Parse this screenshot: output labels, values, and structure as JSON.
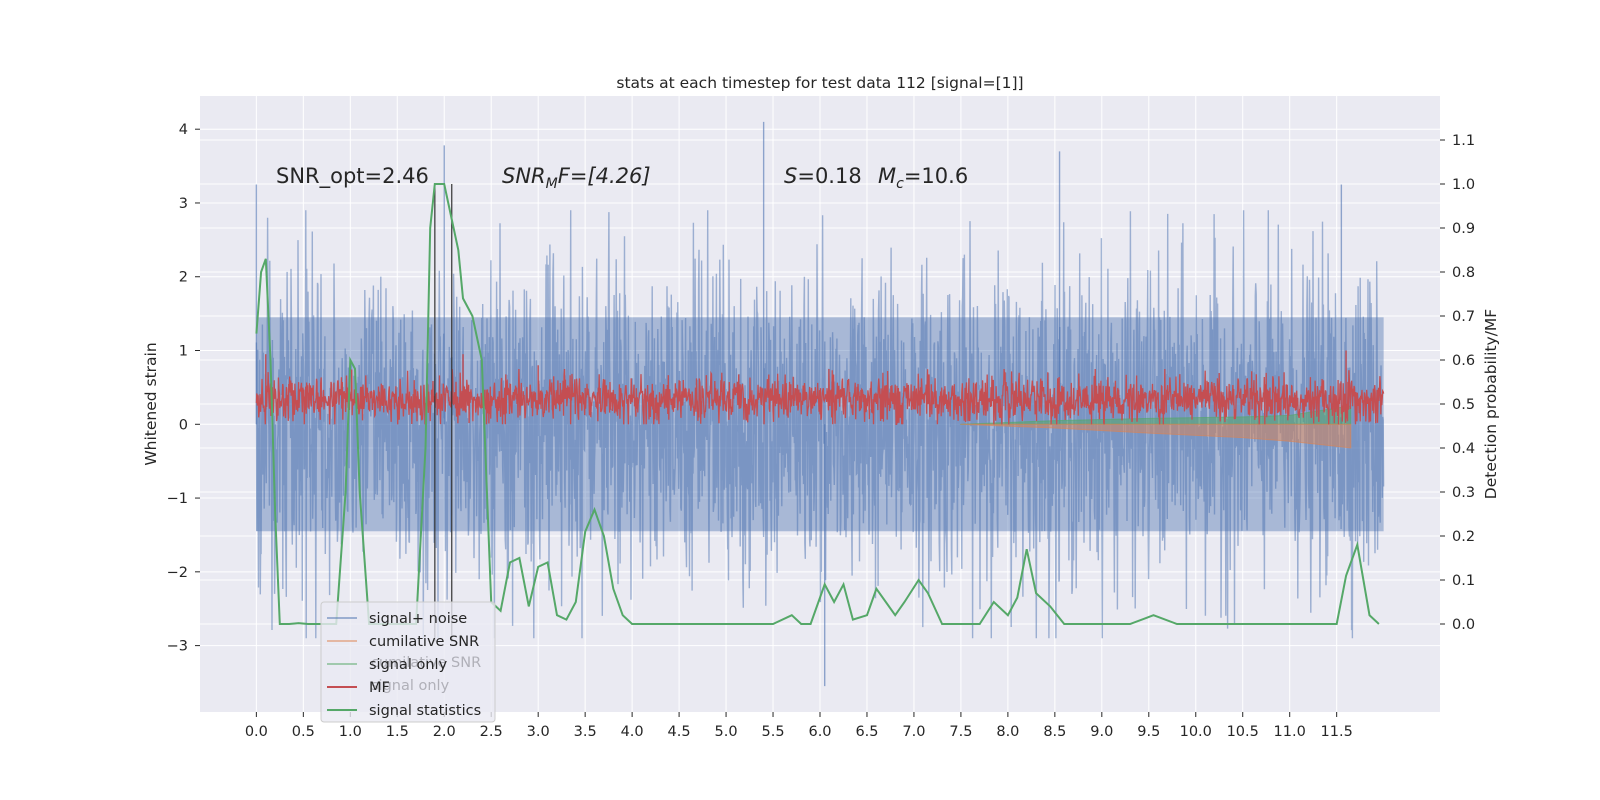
{
  "chart_data": {
    "type": "line",
    "title": "stats at each timestep for test data 112 [signal=[1]]",
    "xlabel": "",
    "ylabel_left": "Whitened strain",
    "ylabel_right": "Detection probability/MF",
    "xlim": [
      -0.6,
      12.6
    ],
    "ylim_left": [
      -3.9,
      4.45
    ],
    "ylim_right": [
      -0.2,
      1.2
    ],
    "x_ticks": [
      "0.0",
      "0.5",
      "1.0",
      "1.5",
      "2.0",
      "2.5",
      "3.0",
      "3.5",
      "4.0",
      "4.5",
      "5.0",
      "5.5",
      "6.0",
      "6.5",
      "7.0",
      "7.5",
      "8.0",
      "8.5",
      "9.0",
      "9.5",
      "10.0",
      "10.5",
      "11.0",
      "11.5"
    ],
    "y_ticks_left": [
      "4",
      "3",
      "2",
      "1",
      "0",
      "−1",
      "−2",
      "−3"
    ],
    "y_ticks_right": [
      "1.1",
      "1.0",
      "0.9",
      "0.8",
      "0.7",
      "0.6",
      "0.5",
      "0.4",
      "0.3",
      "0.2",
      "0.1",
      "0.0"
    ],
    "grid": true,
    "legend_position": "lower-left",
    "annotations": {
      "snr_opt": "SNR_opt=2.46",
      "snr_mf_main": "SNR",
      "snr_mf_sub": "M",
      "snr_mf_tail": "F=[4.26]",
      "s_main": "S",
      "s_tail": "=0.18",
      "mc_main": "M",
      "mc_sub": "c",
      "mc_tail": "=10.6"
    },
    "markers": {
      "vlines_x": [
        1.9,
        2.08
      ]
    },
    "colors": {
      "signal_noise": "#4c72b0",
      "cumulative_snr": "#dd8452",
      "signal_only": "#55a868",
      "mf": "#c44e52",
      "signal_statistics": "#55a868",
      "background": "#eaeaf2",
      "grid": "#ffffff"
    },
    "series": [
      {
        "name": "signal+ noise",
        "description_envelope": {
          "x": [
            0,
            12
          ],
          "typical_abs_max": 2.4,
          "peaks": [
            [
              0.0,
              3.25
            ],
            [
              2.0,
              3.78
            ],
            [
              5.4,
              4.1
            ],
            [
              8.55,
              3.7
            ],
            [
              11.55,
              3.25
            ],
            [
              6.05,
              -3.55
            ]
          ]
        }
      },
      {
        "name": "cumilative SNR",
        "values_note": "decreasing ramp",
        "x": [
          7.5,
          8.5,
          9.5,
          10.5,
          11.0,
          11.65
        ],
        "y": [
          0.0,
          -0.05,
          -0.12,
          -0.18,
          -0.23,
          -0.32
        ]
      },
      {
        "name": "signal only",
        "x": [
          7.5,
          8.5,
          9.5,
          10.5,
          11.0,
          11.65
        ],
        "y": [
          0.0,
          0.05,
          0.08,
          0.1,
          0.12,
          0.25
        ]
      },
      {
        "name": "MF",
        "typical_range": [
          0.0,
          0.5
        ],
        "peaks": [
          [
            0.1,
            0.95
          ],
          [
            2.2,
            0.95
          ],
          [
            3.0,
            0.8
          ],
          [
            11.6,
            1.0
          ]
        ]
      },
      {
        "name": "signal statistics",
        "axis": "right",
        "x": [
          0.0,
          0.05,
          0.1,
          0.15,
          0.2,
          0.25,
          0.3,
          0.35,
          0.45,
          0.55,
          0.65,
          0.75,
          0.85,
          0.95,
          1.0,
          1.05,
          1.1,
          1.2,
          1.3,
          1.4,
          1.5,
          1.6,
          1.7,
          1.8,
          1.85,
          1.9,
          2.0,
          2.05,
          2.15,
          2.2,
          2.3,
          2.4,
          2.5,
          2.6,
          2.7,
          2.8,
          2.9,
          3.0,
          3.1,
          3.2,
          3.3,
          3.4,
          3.5,
          3.6,
          3.7,
          3.8,
          3.9,
          4.0,
          4.2,
          5.5,
          5.7,
          5.8,
          5.9,
          6.05,
          6.15,
          6.25,
          6.35,
          6.5,
          6.6,
          6.8,
          6.9,
          7.05,
          7.15,
          7.3,
          7.5,
          7.7,
          7.85,
          8.0,
          8.1,
          8.2,
          8.3,
          8.45,
          8.6,
          8.8,
          9.3,
          9.55,
          9.8,
          11.5,
          11.6,
          11.72,
          11.85,
          11.95
        ],
        "y": [
          0.66,
          0.8,
          0.83,
          0.6,
          0.25,
          0.0,
          0.0,
          0.0,
          0.002,
          0.0,
          0.0,
          0.0,
          0.0,
          0.3,
          0.6,
          0.58,
          0.3,
          0.0,
          0.0,
          0.0,
          0.0,
          0.0,
          0.0,
          0.4,
          0.9,
          1.0,
          1.0,
          0.95,
          0.85,
          0.74,
          0.7,
          0.6,
          0.05,
          0.03,
          0.14,
          0.15,
          0.04,
          0.13,
          0.14,
          0.02,
          0.01,
          0.05,
          0.21,
          0.26,
          0.2,
          0.08,
          0.02,
          0.0,
          0.0,
          0.0,
          0.02,
          0.0,
          0.0,
          0.09,
          0.05,
          0.09,
          0.01,
          0.02,
          0.08,
          0.02,
          0.05,
          0.1,
          0.07,
          0.0,
          0.0,
          0.0,
          0.05,
          0.02,
          0.06,
          0.17,
          0.07,
          0.04,
          0.0,
          0.0,
          0.0,
          0.02,
          0.0,
          0.0,
          0.11,
          0.18,
          0.02,
          0.0
        ]
      }
    ],
    "legend": [
      {
        "label": "signal+ noise",
        "color": "#4c72b0",
        "alpha": 0.5
      },
      {
        "label": "cumilative SNR",
        "color": "#dd8452",
        "alpha": 0.5
      },
      {
        "label": "signal only",
        "color": "#55a868",
        "alpha": 0.5
      },
      {
        "label": "MF",
        "color": "#c44e52",
        "alpha": 1
      },
      {
        "label": "signal statistics",
        "color": "#55a868",
        "alpha": 1
      }
    ],
    "legend_ghost": [
      "cumilative SNR",
      "signal only"
    ]
  }
}
